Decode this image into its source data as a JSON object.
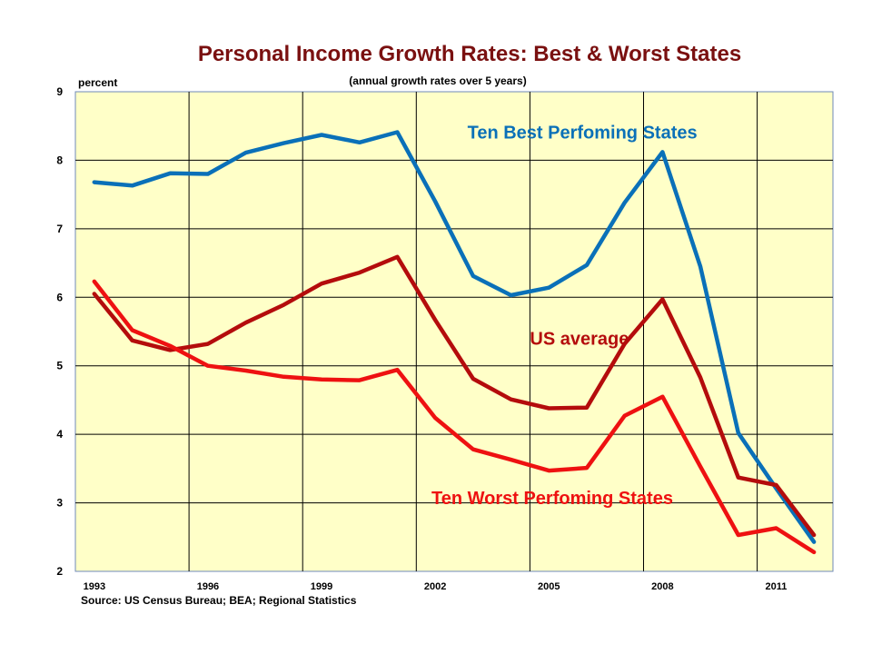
{
  "colors": {
    "title": "#7a1010",
    "plot_bg": "#ffffc8",
    "grid": "#000000",
    "best": "#0a70b8",
    "us": "#b40c0c",
    "worst": "#ee1111",
    "axis_text": "#000000"
  },
  "chart_data": {
    "type": "line",
    "title": "Personal Income Growth Rates: Best & Worst States",
    "subtitle": "(annual  growth rates  over  5 years)",
    "ylabel": "percent",
    "source": "Source:  US Census Bureau;  BEA;  Regional  Statistics",
    "ylim": [
      2,
      9
    ],
    "xlim": [
      1992.5,
      2012.5
    ],
    "y_ticks": [
      2,
      3,
      4,
      5,
      6,
      7,
      8,
      9
    ],
    "x_ticks": [
      1993,
      1996,
      1999,
      2002,
      2005,
      2008,
      2011
    ],
    "x": [
      1993,
      1994,
      1995,
      1996,
      1997,
      1998,
      1999,
      2000,
      2001,
      2002,
      2003,
      2004,
      2005,
      2006,
      2007,
      2008,
      2009,
      2010,
      2011,
      2012
    ],
    "grid": true,
    "series": [
      {
        "key": "best",
        "values": [
          7.68,
          7.63,
          7.81,
          7.8,
          8.11,
          8.25,
          8.37,
          8.26,
          8.41,
          7.4,
          6.31,
          6.03,
          6.14,
          6.47,
          7.38,
          8.12,
          6.45,
          4.02,
          3.21,
          2.43
        ]
      },
      {
        "key": "us",
        "values": [
          6.05,
          5.37,
          5.23,
          5.32,
          5.63,
          5.89,
          6.2,
          6.36,
          6.59,
          5.67,
          4.81,
          4.51,
          4.38,
          4.39,
          5.32,
          5.97,
          4.83,
          3.37,
          3.26,
          2.53
        ]
      },
      {
        "key": "worst",
        "values": [
          6.23,
          5.52,
          5.29,
          5.0,
          4.93,
          4.84,
          4.8,
          4.79,
          4.94,
          4.24,
          3.78,
          3.63,
          3.47,
          3.51,
          4.27,
          4.55,
          3.53,
          2.53,
          2.63,
          2.28
        ]
      }
    ],
    "annotations": [
      {
        "key": "best",
        "text": "Ten Best Perfoming States",
        "x": 2002.85,
        "y": 8.32
      },
      {
        "key": "us",
        "text": "US average",
        "x": 2004.5,
        "y": 5.31
      },
      {
        "key": "worst",
        "text": "Ten Worst Perfoming States",
        "x": 2001.9,
        "y": 2.98
      }
    ]
  }
}
